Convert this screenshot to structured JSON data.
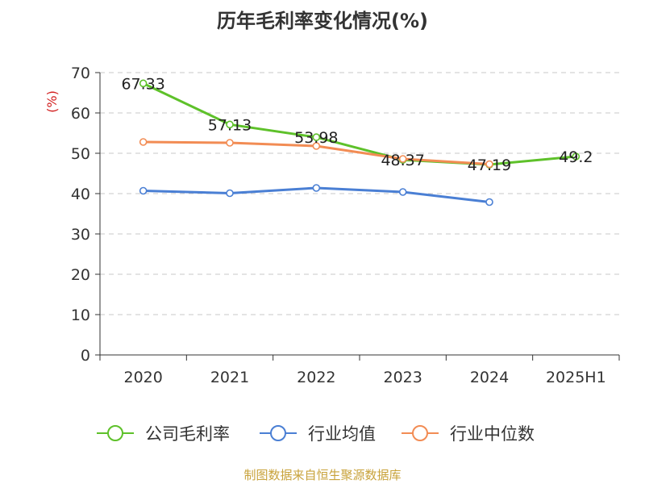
{
  "chart_data": {
    "type": "line",
    "title": "历年毛利率变化情况(%)",
    "ylabel": "(%)",
    "xlabel": "",
    "categories": [
      "2020",
      "2021",
      "2022",
      "2023",
      "2024",
      "2025H1"
    ],
    "ylim": [
      0,
      70
    ],
    "yticks": [
      0,
      10,
      20,
      30,
      40,
      50,
      60,
      70
    ],
    "grid": true,
    "legend_position": "bottom",
    "series": [
      {
        "name": "公司毛利率",
        "color": "#5ec12a",
        "values": [
          67.33,
          57.13,
          53.98,
          48.37,
          47.19,
          49.2
        ],
        "labels": [
          "67.33",
          "57.13",
          "53.98",
          "48.37",
          "47.19",
          "49.2"
        ]
      },
      {
        "name": "行业均值",
        "color": "#4a7fd4",
        "values": [
          40.7,
          40.1,
          41.4,
          40.4,
          37.9,
          null
        ]
      },
      {
        "name": "行业中位数",
        "color": "#f28c54",
        "values": [
          52.8,
          52.6,
          51.8,
          48.6,
          47.3,
          null
        ]
      }
    ]
  },
  "footer": "制图数据来自恒生聚源数据库"
}
